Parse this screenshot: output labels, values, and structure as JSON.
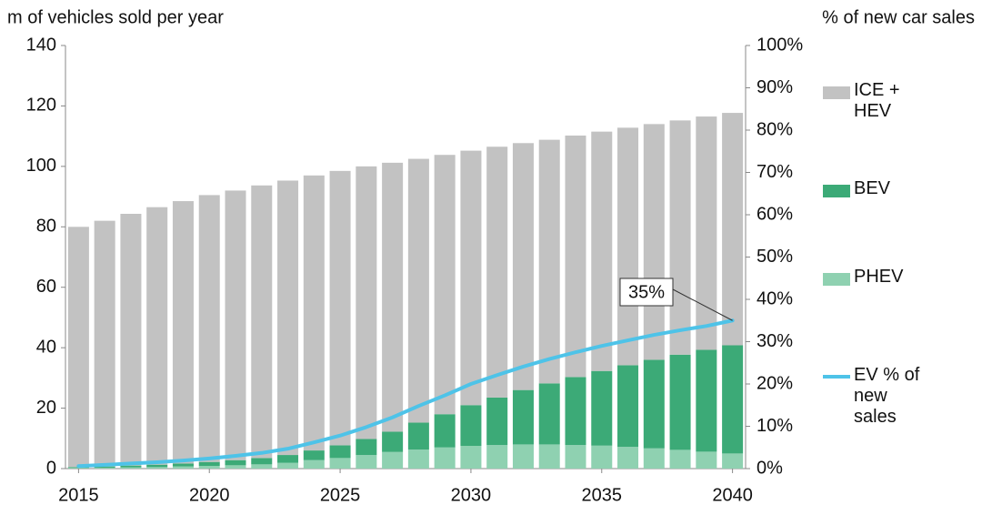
{
  "chart_data": {
    "type": "bar",
    "y_label": "m of vehicles sold per year",
    "y2_label": "% of new car sales",
    "x": [
      2015,
      2016,
      2017,
      2018,
      2019,
      2020,
      2021,
      2022,
      2023,
      2024,
      2025,
      2026,
      2027,
      2028,
      2029,
      2030,
      2031,
      2032,
      2033,
      2034,
      2035,
      2036,
      2037,
      2038,
      2039,
      2040
    ],
    "xlim": [
      2014.5,
      2040.5
    ],
    "xticks": [
      2015,
      2020,
      2025,
      2030,
      2035,
      2040
    ],
    "ylim": [
      0,
      140
    ],
    "yticks": [
      0,
      20,
      40,
      60,
      80,
      100,
      120,
      140
    ],
    "y2lim": [
      0,
      100
    ],
    "y2ticks": [
      {
        "value": 0,
        "label": "0%"
      },
      {
        "value": 10,
        "label": "10%"
      },
      {
        "value": 20,
        "label": "20%"
      },
      {
        "value": 30,
        "label": "30%"
      },
      {
        "value": 40,
        "label": "40%"
      },
      {
        "value": 50,
        "label": "50%"
      },
      {
        "value": 60,
        "label": "60%"
      },
      {
        "value": 70,
        "label": "70%"
      },
      {
        "value": 80,
        "label": "80%"
      },
      {
        "value": 90,
        "label": "90%"
      },
      {
        "value": 100,
        "label": "100%"
      }
    ],
    "stacked": true,
    "series": [
      {
        "name": "ICE + HEV",
        "color": "#c2c2c2",
        "values": [
          79.5,
          81.3,
          83.3,
          85.2,
          86.8,
          88.3,
          89.2,
          90.2,
          90.8,
          91,
          90.8,
          90.2,
          89,
          87.3,
          85.8,
          84.2,
          83,
          81.7,
          80.6,
          79.9,
          79.2,
          78.6,
          78,
          77.5,
          77.2,
          76.9
        ]
      },
      {
        "name": "BEV",
        "color": "#3caa77",
        "values": [
          0.3,
          0.4,
          0.6,
          0.8,
          1.0,
          1.3,
          1.7,
          2.1,
          2.6,
          3.2,
          4.2,
          5.3,
          6.7,
          8.9,
          11,
          13.5,
          15.7,
          18,
          20.2,
          22.5,
          24.7,
          27,
          29.3,
          31.5,
          33.7,
          35.8
        ]
      },
      {
        "name": "PHEV",
        "color": "#8fd1b1",
        "values": [
          0.2,
          0.3,
          0.4,
          0.5,
          0.7,
          0.9,
          1.1,
          1.4,
          1.9,
          2.8,
          3.5,
          4.5,
          5.5,
          6.3,
          7,
          7.5,
          7.8,
          8,
          8,
          7.8,
          7.6,
          7.2,
          6.7,
          6.2,
          5.6,
          5
        ]
      },
      {
        "name": "EV % of new sales",
        "color": "#4ec3e8",
        "type": "line",
        "axis": "y2",
        "values": [
          0.6,
          0.9,
          1.2,
          1.5,
          1.9,
          2.4,
          3,
          3.7,
          4.7,
          6.2,
          7.8,
          9.8,
          12.1,
          14.8,
          17.3,
          20,
          22.1,
          24.1,
          25.9,
          27.5,
          29,
          30.3,
          31.6,
          32.7,
          33.7,
          35
        ]
      }
    ],
    "annotation": "35%"
  }
}
